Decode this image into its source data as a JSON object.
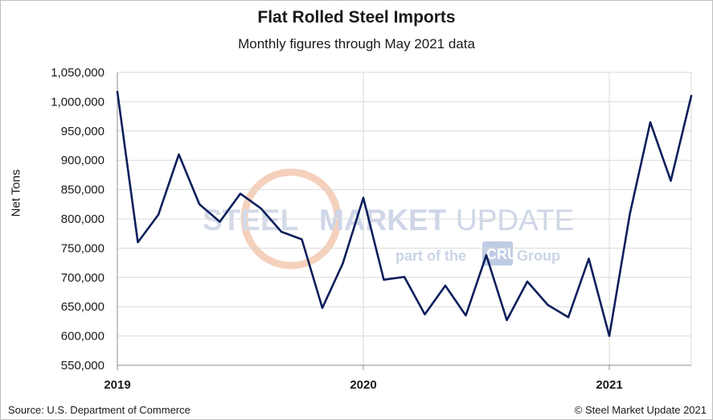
{
  "chart_data": {
    "type": "line",
    "title": "Flat Rolled Steel Imports",
    "subtitle": "Monthly figures through May 2021 data",
    "ylabel": "Net Tons",
    "xlabel": "",
    "ylim": [
      550000,
      1050000
    ],
    "yticks": [
      550000,
      600000,
      650000,
      700000,
      750000,
      800000,
      850000,
      900000,
      950000,
      1000000,
      1050000
    ],
    "ytick_labels": [
      "550,000",
      "600,000",
      "650,000",
      "700,000",
      "750,000",
      "800,000",
      "850,000",
      "900,000",
      "950,000",
      "1,000,000",
      "1,050,000"
    ],
    "xtick_labels": [
      "2019",
      "2020",
      "2021"
    ],
    "grid": true,
    "line_color": "#0d1f5c",
    "categories": [
      "2019-01",
      "2019-02",
      "2019-03",
      "2019-04",
      "2019-05",
      "2019-06",
      "2019-07",
      "2019-08",
      "2019-09",
      "2019-10",
      "2019-11",
      "2019-12",
      "2020-01",
      "2020-02",
      "2020-03",
      "2020-04",
      "2020-05",
      "2020-06",
      "2020-07",
      "2020-08",
      "2020-09",
      "2020-10",
      "2020-11",
      "2020-12",
      "2021-01",
      "2021-02",
      "2021-03",
      "2021-04",
      "2021-05"
    ],
    "values": [
      1017000,
      760000,
      807000,
      910000,
      825000,
      795000,
      843000,
      818000,
      778000,
      765000,
      648000,
      724000,
      836000,
      696000,
      701000,
      637000,
      686000,
      635000,
      738000,
      627000,
      693000,
      653000,
      632000,
      732000,
      600000,
      808000,
      965000,
      865000,
      1010000
    ]
  },
  "watermark": {
    "line1_part1": "STEEL",
    "line1_part2": "MARKET",
    "line1_part3": "UPDATE",
    "line2_part1": "part of the",
    "line2_logo": "CRU",
    "line2_part2": "Group"
  },
  "footer": {
    "source": "Source: U.S. Department of Commerce",
    "copyright": "© Steel Market Update 2021"
  }
}
